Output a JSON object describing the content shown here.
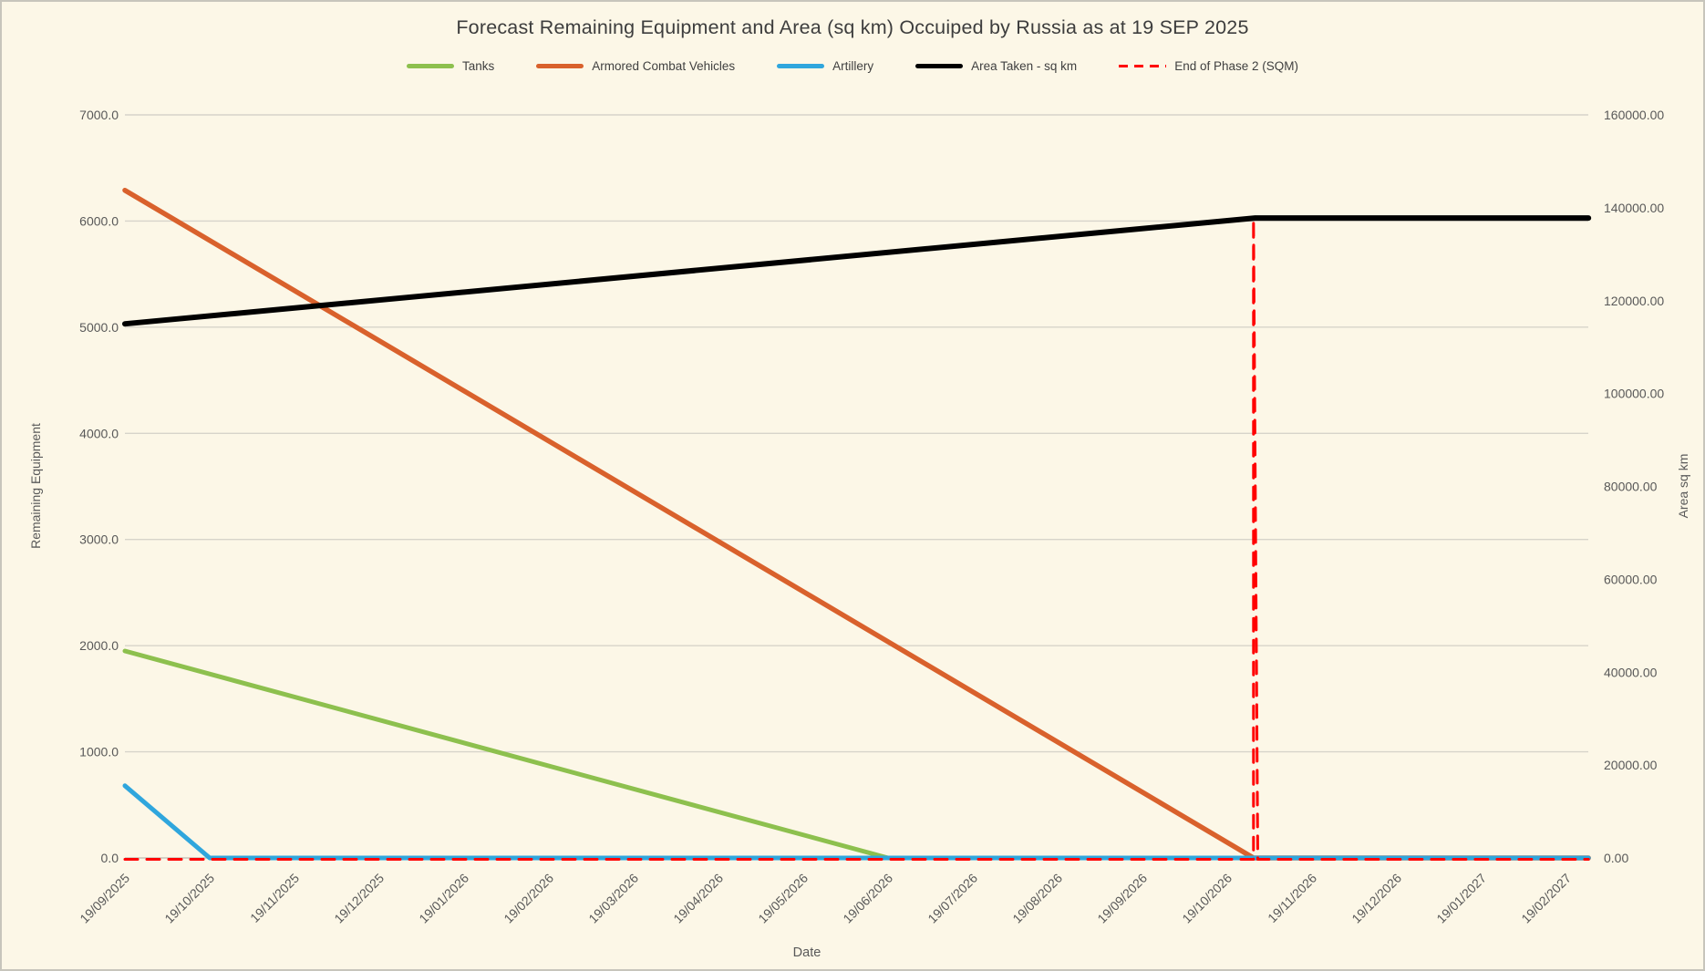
{
  "title": "Forecast Remaining Equipment and Area (sq km) Occuiped by Russia as at 19 SEP 2025",
  "chart_data": {
    "type": "line",
    "title": "Forecast Remaining Equipment and Area (sq km) Occuiped by Russia as at 19 SEP 2025",
    "x_label": "Date",
    "y_left_label": "Remaining Equipment",
    "y_right_label": "Area sq km",
    "legend_position": "top",
    "grid": "horizontal gridlines at primary (left) axis ticks",
    "x_unit": "month index: 0 = 19/09/2025, each step = 1 month; plot right edge = 17.26",
    "categories": [
      "19/09/2025",
      "19/10/2025",
      "19/11/2025",
      "19/12/2025",
      "19/01/2026",
      "19/02/2026",
      "19/03/2026",
      "19/04/2026",
      "19/05/2026",
      "19/06/2026",
      "19/07/2026",
      "19/08/2026",
      "19/09/2026",
      "19/10/2026",
      "19/11/2026",
      "19/12/2026",
      "19/01/2027",
      "19/02/2027"
    ],
    "y_left": {
      "min": 0,
      "max": 7000,
      "tick_step": 1000,
      "labels": [
        "0.0",
        "1000.0",
        "2000.0",
        "3000.0",
        "4000.0",
        "5000.0",
        "6000.0",
        "7000.0"
      ]
    },
    "y_right": {
      "min": 0,
      "max": 160000,
      "tick_step": 20000,
      "labels": [
        "0.00",
        "20000.00",
        "40000.00",
        "60000.00",
        "80000.00",
        "100000.00",
        "120000.00",
        "140000.00",
        "160000.00"
      ]
    },
    "series": [
      {
        "name": "Tanks",
        "color": "#8DC04E",
        "axis": "left",
        "style": "solid",
        "width": 5,
        "points": [
          [
            0,
            1950
          ],
          [
            9,
            0
          ],
          [
            17.26,
            0
          ]
        ]
      },
      {
        "name": "Armored Combat Vehicles",
        "color": "#D9612C",
        "axis": "left",
        "style": "solid",
        "width": 5.5,
        "points": [
          [
            0,
            6290
          ],
          [
            13.31,
            0
          ],
          [
            17.26,
            0
          ]
        ]
      },
      {
        "name": "Artillery",
        "color": "#2FA6DD",
        "axis": "left",
        "style": "solid",
        "width": 5,
        "points": [
          [
            0,
            680
          ],
          [
            1,
            0
          ],
          [
            17.26,
            0
          ]
        ]
      },
      {
        "name": "Area Taken - sq km",
        "color": "#000000",
        "axis": "right",
        "style": "solid",
        "width": 6,
        "points": [
          [
            0,
            115000
          ],
          [
            13.33,
            137800
          ],
          [
            17.26,
            137800
          ]
        ]
      },
      {
        "name": "End of Phase 2 (SQM)",
        "color": "#FF0000",
        "axis": "right",
        "style": "dashed",
        "width": 3,
        "offset_y": 1.5,
        "points": [
          [
            0,
            0
          ],
          [
            13.31,
            0
          ],
          [
            13.31,
            137800
          ],
          [
            13.36,
            0
          ],
          [
            17.26,
            0
          ]
        ]
      }
    ]
  }
}
